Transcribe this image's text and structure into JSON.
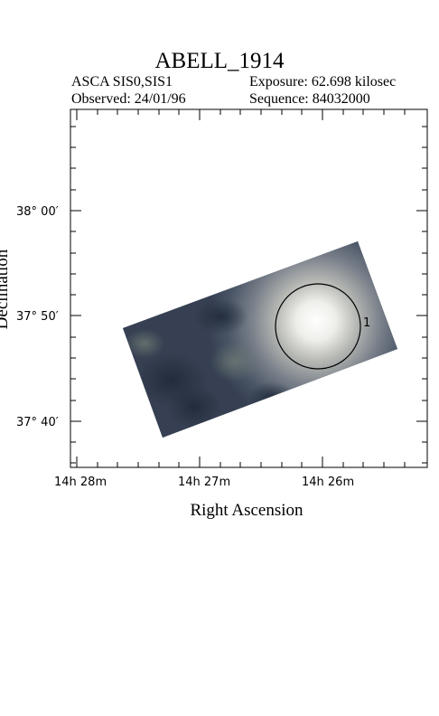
{
  "header": {
    "title": "ABELL_1914",
    "instrument": "ASCA SIS0,SIS1",
    "exposure": "Exposure: 62.698 kilosec",
    "observed": "Observed: 24/01/96",
    "sequence": "Sequence: 84032000"
  },
  "axes": {
    "xlabel": "Right Ascension",
    "ylabel": "Declination",
    "x_ticks": [
      "14h 28m",
      "14h 27m",
      "14h 26m"
    ],
    "y_ticks": [
      "38° 00′",
      "37° 50′",
      "37° 40′"
    ]
  },
  "region": {
    "label": "1"
  },
  "colors": {
    "frame": "#000000",
    "image_dark": "#2b3444",
    "image_mid": "#5a6572",
    "source_bright": "#ffffff",
    "region_circle": "#000000"
  }
}
